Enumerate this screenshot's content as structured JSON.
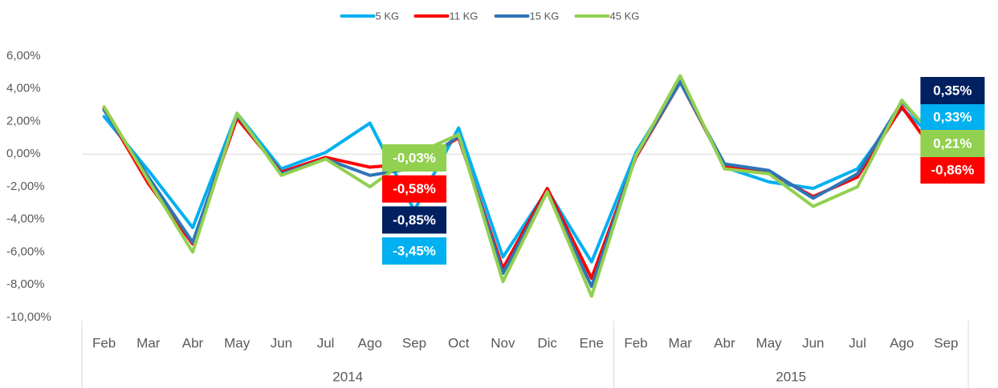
{
  "chart_data": {
    "type": "line",
    "categories": [
      "Feb",
      "Mar",
      "Abr",
      "May",
      "Jun",
      "Jul",
      "Ago",
      "Sep",
      "Oct",
      "Nov",
      "Dic",
      "Ene",
      "Feb",
      "Mar",
      "Abr",
      "May",
      "Jun",
      "Jul",
      "Ago",
      "Sep"
    ],
    "groups": [
      {
        "label": "2014",
        "count": 12
      },
      {
        "label": "2015",
        "count": 8
      }
    ],
    "ylim": [
      -10,
      6
    ],
    "yticks": [
      {
        "value": -10,
        "label": "-10,00%"
      },
      {
        "value": -8,
        "label": "-8,00%"
      },
      {
        "value": -6,
        "label": "-6,00%"
      },
      {
        "value": -4,
        "label": "-4,00%"
      },
      {
        "value": -2,
        "label": "-2,00%"
      },
      {
        "value": 0,
        "label": "0,00%"
      },
      {
        "value": 2,
        "label": "2,00%"
      },
      {
        "value": 4,
        "label": "4,00%"
      },
      {
        "value": 6,
        "label": "6,00%"
      }
    ],
    "legend": "top",
    "series": [
      {
        "name": "5 KG",
        "color": "#00b0f0",
        "label_color": "#00b0f0",
        "values": [
          2.3,
          -1.0,
          -4.5,
          2.5,
          -0.9,
          0.1,
          1.9,
          -3.45,
          1.6,
          -6.3,
          -2.2,
          -6.6,
          0.1,
          4.5,
          -0.8,
          -1.7,
          -2.1,
          -0.9,
          2.8,
          0.33
        ],
        "value_labels": [
          null,
          null,
          null,
          null,
          null,
          null,
          null,
          "-3,45%",
          null,
          null,
          null,
          null,
          null,
          null,
          null,
          null,
          null,
          null,
          null,
          "0,33%"
        ]
      },
      {
        "name": "11 KG",
        "color": "#ff0000",
        "label_color": "#ff0000",
        "values": [
          2.8,
          -1.8,
          -5.5,
          2.2,
          -1.1,
          -0.2,
          -0.8,
          -0.58,
          1.0,
          -7.0,
          -2.1,
          -7.6,
          -0.2,
          4.4,
          -0.7,
          -1.1,
          -2.6,
          -1.4,
          2.9,
          -0.86
        ],
        "value_labels": [
          null,
          null,
          null,
          null,
          null,
          null,
          null,
          "-0,58%",
          null,
          null,
          null,
          null,
          null,
          null,
          null,
          null,
          null,
          null,
          null,
          "-0,86%"
        ]
      },
      {
        "name": "15 KG",
        "color": "#2e75b6",
        "label_color": "#002060",
        "values": [
          2.7,
          -1.4,
          -5.4,
          2.4,
          -1.2,
          -0.3,
          -1.3,
          -0.85,
          1.1,
          -7.3,
          -2.3,
          -8.1,
          -0.1,
          4.4,
          -0.6,
          -1.0,
          -2.7,
          -1.2,
          3.2,
          0.35
        ],
        "value_labels": [
          null,
          null,
          null,
          null,
          null,
          null,
          null,
          "-0,85%",
          null,
          null,
          null,
          null,
          null,
          null,
          null,
          null,
          null,
          null,
          null,
          "0,35%"
        ]
      },
      {
        "name": "45 KG",
        "color": "#92d050",
        "label_color": "#92d050",
        "values": [
          2.9,
          -1.6,
          -6.0,
          2.5,
          -1.3,
          -0.3,
          -2.0,
          -0.03,
          1.2,
          -7.8,
          -2.3,
          -8.7,
          -0.1,
          4.8,
          -0.9,
          -1.2,
          -3.2,
          -2.0,
          3.3,
          0.21
        ],
        "value_labels": [
          null,
          null,
          null,
          null,
          null,
          null,
          null,
          "-0,03%",
          null,
          null,
          null,
          null,
          null,
          null,
          null,
          null,
          null,
          null,
          null,
          "0,21%"
        ]
      }
    ]
  }
}
